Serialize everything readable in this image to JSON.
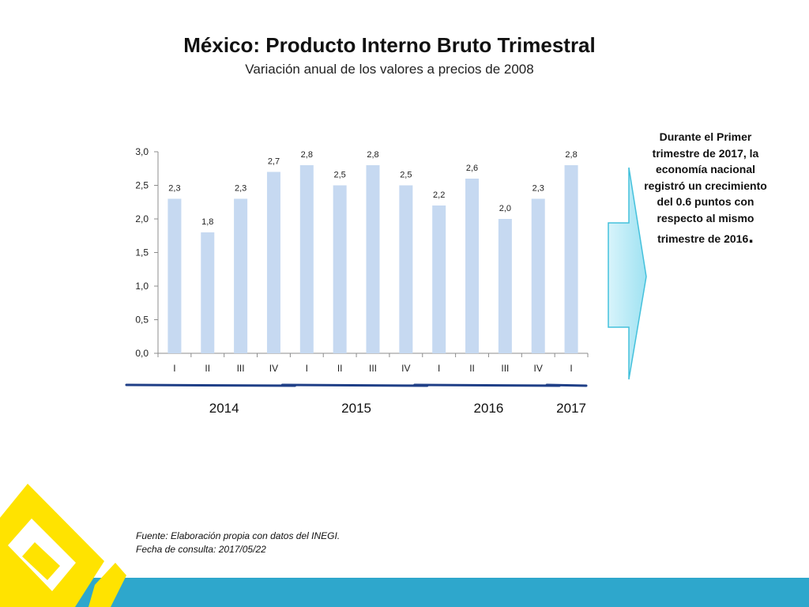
{
  "title": "México: Producto Interno Bruto Trimestral",
  "subtitle": "Variación anual de los valores a precios de 2008",
  "note": {
    "line1": "Durante el Primer",
    "line2": "trimestre de 2017, la",
    "line3": "economía nacional",
    "line4": "registró un crecimiento",
    "line5": "del   0.6 puntos con",
    "line6": "respecto al mismo",
    "line7": "trimestre de 2016",
    "line7_end": "."
  },
  "source": {
    "line1": "Fuente: Elaboración propia con datos del INEGI.",
    "line2": "Fecha de consulta: 2017/05/22"
  },
  "colors": {
    "bar": "#c6d9f1",
    "year_line": "#1f3f87",
    "band": "#2ea7cc",
    "logo": "#ffe300"
  },
  "chart_data": {
    "type": "bar",
    "categories": [
      "I",
      "II",
      "III",
      "IV",
      "I",
      "II",
      "III",
      "IV",
      "I",
      "II",
      "III",
      "IV",
      "I"
    ],
    "values": [
      2.3,
      1.8,
      2.3,
      2.7,
      2.8,
      2.5,
      2.8,
      2.5,
      2.2,
      2.6,
      2.0,
      2.3,
      2.8
    ],
    "value_labels": [
      "2,3",
      "1,8",
      "2,3",
      "2,7",
      "2,8",
      "2,5",
      "2,8",
      "2,5",
      "2,2",
      "2,6",
      "2,0",
      "2,3",
      "2,8"
    ],
    "ylim": [
      0,
      3
    ],
    "yticks": [
      "0,0",
      "0,5",
      "1,0",
      "1,5",
      "2,0",
      "2,5",
      "3,0"
    ],
    "years": [
      {
        "label": "2014",
        "from": 0,
        "to": 3
      },
      {
        "label": "2015",
        "from": 4,
        "to": 7
      },
      {
        "label": "2016",
        "from": 8,
        "to": 11
      },
      {
        "label": "2017",
        "from": 12,
        "to": 12
      }
    ],
    "grid": false
  }
}
